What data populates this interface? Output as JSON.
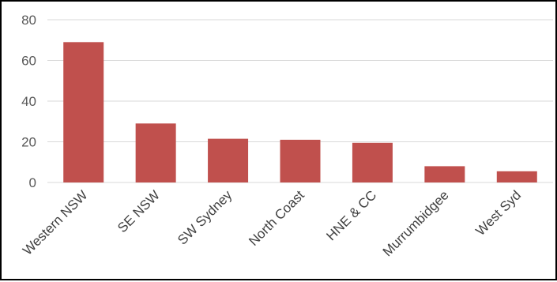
{
  "chart_data": {
    "type": "bar",
    "categories": [
      "Western NSW",
      "SE NSW",
      "SW Sydney",
      "North Coast",
      "HNE & CC",
      "Murrumbidgee",
      "West Syd"
    ],
    "values": [
      69,
      29,
      21.5,
      21,
      19.5,
      8,
      5.5
    ],
    "title": "",
    "xlabel": "",
    "ylabel": "",
    "ylim": [
      0,
      80
    ],
    "yticks": [
      0,
      20,
      40,
      60,
      80
    ],
    "grid": true,
    "legend": "none",
    "bar_color": "#C0504D",
    "gridline_color": "#D9D9D9"
  }
}
